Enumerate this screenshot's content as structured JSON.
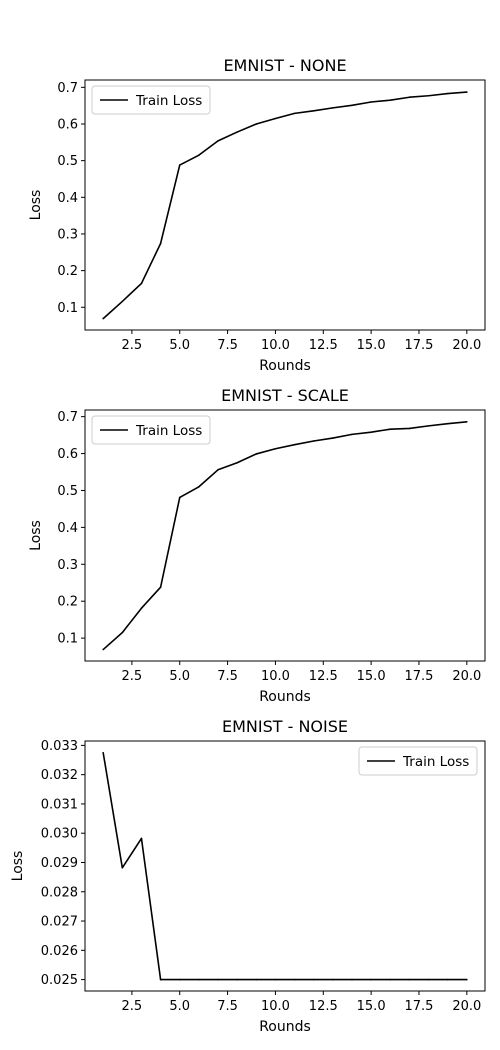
{
  "chart_data": [
    {
      "type": "line",
      "title": "EMNIST - NONE",
      "xlabel": "Rounds",
      "ylabel": "Loss",
      "xlim": [
        0.05,
        20.95
      ],
      "ylim": [
        0.038,
        0.72
      ],
      "xticks": [
        2.5,
        5.0,
        7.5,
        10.0,
        12.5,
        15.0,
        17.5,
        20.0
      ],
      "xtick_labels": [
        "2.5",
        "5.0",
        "7.5",
        "10.0",
        "12.5",
        "15.0",
        "17.5",
        "20.0"
      ],
      "yticks": [
        0.1,
        0.2,
        0.3,
        0.4,
        0.5,
        0.6,
        0.7
      ],
      "ytick_labels": [
        "0.1",
        "0.2",
        "0.3",
        "0.4",
        "0.5",
        "0.6",
        "0.7"
      ],
      "legend": "upper left",
      "grid": false,
      "series": [
        {
          "name": "Train Loss",
          "color": "#000000",
          "x": [
            1,
            2,
            3,
            4,
            5,
            6,
            7,
            8,
            9,
            10,
            11,
            12,
            13,
            14,
            15,
            16,
            17,
            18,
            19,
            20
          ],
          "values": [
            0.069,
            0.116,
            0.165,
            0.274,
            0.488,
            0.515,
            0.554,
            0.578,
            0.6,
            0.615,
            0.629,
            0.636,
            0.644,
            0.651,
            0.66,
            0.665,
            0.673,
            0.677,
            0.683,
            0.687
          ]
        }
      ]
    },
    {
      "type": "line",
      "title": "EMNIST - SCALE",
      "xlabel": "Rounds",
      "ylabel": "Loss",
      "xlim": [
        0.05,
        20.95
      ],
      "ylim": [
        0.038,
        0.718
      ],
      "xticks": [
        2.5,
        5.0,
        7.5,
        10.0,
        12.5,
        15.0,
        17.5,
        20.0
      ],
      "xtick_labels": [
        "2.5",
        "5.0",
        "7.5",
        "10.0",
        "12.5",
        "15.0",
        "17.5",
        "20.0"
      ],
      "yticks": [
        0.1,
        0.2,
        0.3,
        0.4,
        0.5,
        0.6,
        0.7
      ],
      "ytick_labels": [
        "0.1",
        "0.2",
        "0.3",
        "0.4",
        "0.5",
        "0.6",
        "0.7"
      ],
      "legend": "upper left",
      "grid": false,
      "series": [
        {
          "name": "Train Loss",
          "color": "#000000",
          "x": [
            1,
            2,
            3,
            4,
            5,
            6,
            7,
            8,
            9,
            10,
            11,
            12,
            13,
            14,
            15,
            16,
            17,
            18,
            19,
            20
          ],
          "values": [
            0.069,
            0.115,
            0.181,
            0.238,
            0.481,
            0.51,
            0.556,
            0.575,
            0.599,
            0.613,
            0.624,
            0.634,
            0.642,
            0.652,
            0.658,
            0.666,
            0.668,
            0.675,
            0.681,
            0.686
          ]
        }
      ]
    },
    {
      "type": "line",
      "title": "EMNIST - NOISE",
      "xlabel": "Rounds",
      "ylabel": "Loss",
      "xlim": [
        0.05,
        20.95
      ],
      "ylim": [
        0.02461,
        0.03315
      ],
      "xticks": [
        2.5,
        5.0,
        7.5,
        10.0,
        12.5,
        15.0,
        17.5,
        20.0
      ],
      "xtick_labels": [
        "2.5",
        "5.0",
        "7.5",
        "10.0",
        "12.5",
        "15.0",
        "17.5",
        "20.0"
      ],
      "yticks": [
        0.025,
        0.026,
        0.027,
        0.028,
        0.029,
        0.03,
        0.031,
        0.032,
        0.033
      ],
      "ytick_labels": [
        "0.025",
        "0.026",
        "0.027",
        "0.028",
        "0.029",
        "0.030",
        "0.031",
        "0.032",
        "0.033"
      ],
      "legend": "upper right",
      "grid": false,
      "series": [
        {
          "name": "Train Loss",
          "color": "#000000",
          "x": [
            1,
            2,
            3,
            4,
            5,
            6,
            7,
            8,
            9,
            10,
            11,
            12,
            13,
            14,
            15,
            16,
            17,
            18,
            19,
            20
          ],
          "values": [
            0.03275,
            0.02882,
            0.02982,
            0.025,
            0.025,
            0.025,
            0.025,
            0.025,
            0.025,
            0.025,
            0.025,
            0.025,
            0.025,
            0.025,
            0.025,
            0.025,
            0.025,
            0.025,
            0.025,
            0.025
          ]
        }
      ]
    }
  ]
}
